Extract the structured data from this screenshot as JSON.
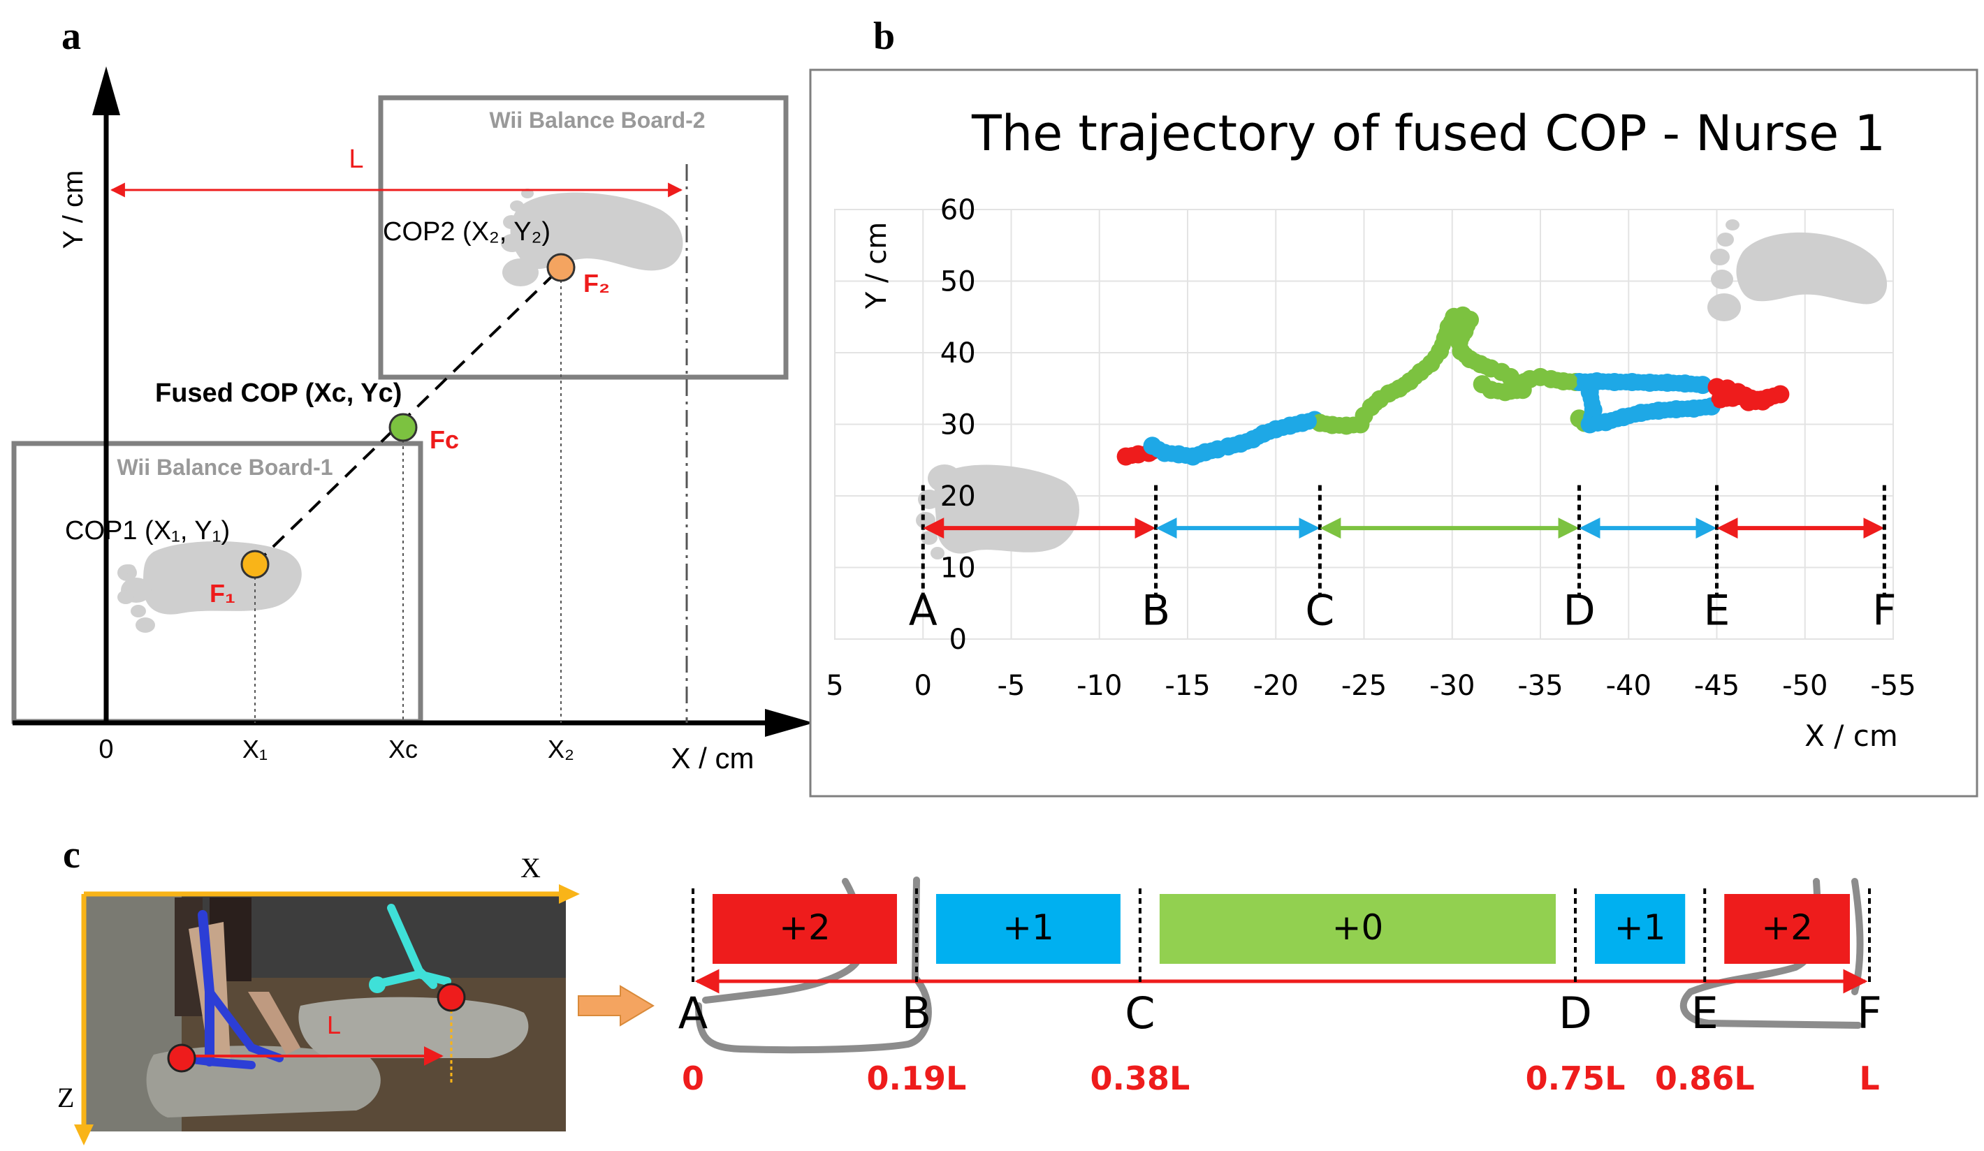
{
  "panel_labels": {
    "a": "a",
    "b": "b",
    "c": "c"
  },
  "panel_a": {
    "x_axis_label": "X / cm",
    "y_axis_label": "Y / cm",
    "origin_label": "0",
    "board1_label": "Wii Balance Board-1",
    "board2_label": "Wii Balance Board-2",
    "distance_label": "L",
    "cop1_label": "COP1 (X₁, Y₁)",
    "cop2_label": "COP2 (X₂, Y₂)",
    "fused_label": "Fused COP (Xc, Yc)",
    "f1_label": "F₁",
    "f2_label": "F₂",
    "fc_label": "Fc",
    "x1_tick": "X₁",
    "xc_tick": "Xc",
    "x2_tick": "X₂",
    "colors": {
      "cop1": "#f9b418",
      "cop2": "#f4a460",
      "fused": "#7cc240",
      "red": "#ee1c1c",
      "board": "#808080"
    }
  },
  "panel_b": {
    "chart_data": {
      "type": "scatter",
      "title": "The trajectory of fused COP  - Nurse 1",
      "xlabel": "X / cm",
      "ylabel": "Y / cm",
      "xlim": [
        5,
        -55
      ],
      "ylim": [
        0,
        60
      ],
      "x_ticks": [
        "5",
        "0",
        "-5",
        "-10",
        "-15",
        "-20",
        "-25",
        "-30",
        "-35",
        "-40",
        "-45",
        "-50",
        "-55"
      ],
      "y_ticks": [
        "0",
        "10",
        "20",
        "30",
        "40",
        "50",
        "60"
      ],
      "grid": true,
      "segments": [
        {
          "label": "A",
          "x": 0
        },
        {
          "label": "B",
          "x": -13.2
        },
        {
          "label": "C",
          "x": -22.5
        },
        {
          "label": "D",
          "x": -37.2
        },
        {
          "label": "E",
          "x": -45
        },
        {
          "label": "F",
          "x": -54.5
        }
      ],
      "segment_colors": [
        "#ee1c1c",
        "#1ea8e6",
        "#7cc240",
        "#1ea8e6",
        "#ee1c1c"
      ],
      "series": [
        {
          "color": "#ee1c1c",
          "points": [
            [
              -11.5,
              25.5
            ],
            [
              -12.2,
              25.8
            ],
            [
              -12.8,
              26
            ],
            [
              -13,
              26.3
            ]
          ]
        },
        {
          "color": "#1ea8e6",
          "points": [
            [
              -13,
              27
            ],
            [
              -13.7,
              26
            ],
            [
              -14.5,
              25.8
            ],
            [
              -15.3,
              25.5
            ],
            [
              -16,
              26.1
            ],
            [
              -16.7,
              26.5
            ],
            [
              -17.3,
              26.9
            ],
            [
              -18,
              27.3
            ],
            [
              -18.7,
              27.9
            ],
            [
              -19.3,
              28.7
            ],
            [
              -20,
              29.3
            ],
            [
              -20.8,
              29.8
            ],
            [
              -21.5,
              30.2
            ],
            [
              -22.2,
              30.6
            ]
          ]
        },
        {
          "color": "#7cc240",
          "points": [
            [
              -22.5,
              30.2
            ],
            [
              -23.2,
              29.9
            ],
            [
              -24,
              29.8
            ],
            [
              -24.8,
              30
            ],
            [
              -25,
              31.2
            ],
            [
              -25.4,
              32.4
            ],
            [
              -25.9,
              33.5
            ],
            [
              -26.4,
              34.3
            ],
            [
              -27,
              35
            ],
            [
              -27.6,
              36
            ],
            [
              -28.2,
              37.3
            ],
            [
              -28.8,
              38.5
            ],
            [
              -29.3,
              40.2
            ],
            [
              -29.6,
              42
            ],
            [
              -29.8,
              43.6
            ],
            [
              -30.1,
              45
            ],
            [
              -30.6,
              45.2
            ],
            [
              -31,
              44.6
            ],
            [
              -30.7,
              43
            ],
            [
              -30.4,
              41.5
            ],
            [
              -30.5,
              40.2
            ],
            [
              -31,
              39.1
            ],
            [
              -31.6,
              38.4
            ],
            [
              -32.2,
              37.8
            ],
            [
              -32.8,
              37.3
            ],
            [
              -33.3,
              36.6
            ],
            [
              -33.8,
              35.7
            ],
            [
              -34.4,
              36.3
            ],
            [
              -35,
              36.6
            ],
            [
              -35.6,
              36.3
            ],
            [
              -36.3,
              36
            ],
            [
              -37,
              35.9
            ],
            [
              -34,
              34.8
            ],
            [
              -33,
              34.5
            ],
            [
              -32.2,
              34.8
            ],
            [
              -31.7,
              35.6
            ],
            [
              -37.2,
              30.8
            ],
            [
              -37.5,
              30.2
            ]
          ]
        },
        {
          "color": "#1ea8e6",
          "points": [
            [
              -37.2,
              35.9
            ],
            [
              -38.2,
              36
            ],
            [
              -39.2,
              35.9
            ],
            [
              -40.2,
              35.9
            ],
            [
              -41.2,
              35.8
            ],
            [
              -42.2,
              35.8
            ],
            [
              -43.2,
              35.7
            ],
            [
              -44.2,
              35.5
            ],
            [
              -37.8,
              34.5
            ],
            [
              -38,
              32
            ],
            [
              -37.8,
              30
            ],
            [
              -38.7,
              30.3
            ],
            [
              -39.7,
              31
            ],
            [
              -40.7,
              31.6
            ],
            [
              -41.7,
              31.9
            ],
            [
              -42.7,
              32.1
            ],
            [
              -43.7,
              32.2
            ],
            [
              -44.7,
              32.5
            ]
          ]
        },
        {
          "color": "#ee1c1c",
          "points": [
            [
              -45,
              35.2
            ],
            [
              -45.6,
              35
            ],
            [
              -46.2,
              34.5
            ],
            [
              -45.2,
              33.5
            ],
            [
              -45.9,
              33.7
            ],
            [
              -46.6,
              34
            ],
            [
              -47.3,
              33.4
            ],
            [
              -47.9,
              33.7
            ],
            [
              -48.6,
              34.2
            ],
            [
              -46.8,
              33.1
            ],
            [
              -47.6,
              33.2
            ]
          ]
        }
      ]
    }
  },
  "panel_c": {
    "x_label": "X",
    "z_label": "Z",
    "photo_l_label": "L",
    "blocks": [
      {
        "label": "+2",
        "color": "#ee1c1c"
      },
      {
        "label": "+1",
        "color": "#00b0f0"
      },
      {
        "label": "+0",
        "color": "#92d050"
      },
      {
        "label": "+1",
        "color": "#00b0f0"
      },
      {
        "label": "+2",
        "color": "#ee1c1c"
      }
    ],
    "points": [
      {
        "letter": "A",
        "fraction_label": "0",
        "fraction": 0
      },
      {
        "letter": "B",
        "fraction_label": "0.19L",
        "fraction": 0.19
      },
      {
        "letter": "C",
        "fraction_label": "0.38L",
        "fraction": 0.38
      },
      {
        "letter": "D",
        "fraction_label": "0.75L",
        "fraction": 0.75
      },
      {
        "letter": "E",
        "fraction_label": "0.86L",
        "fraction": 0.86
      },
      {
        "letter": "F",
        "fraction_label": "L",
        "fraction": 1
      }
    ]
  }
}
